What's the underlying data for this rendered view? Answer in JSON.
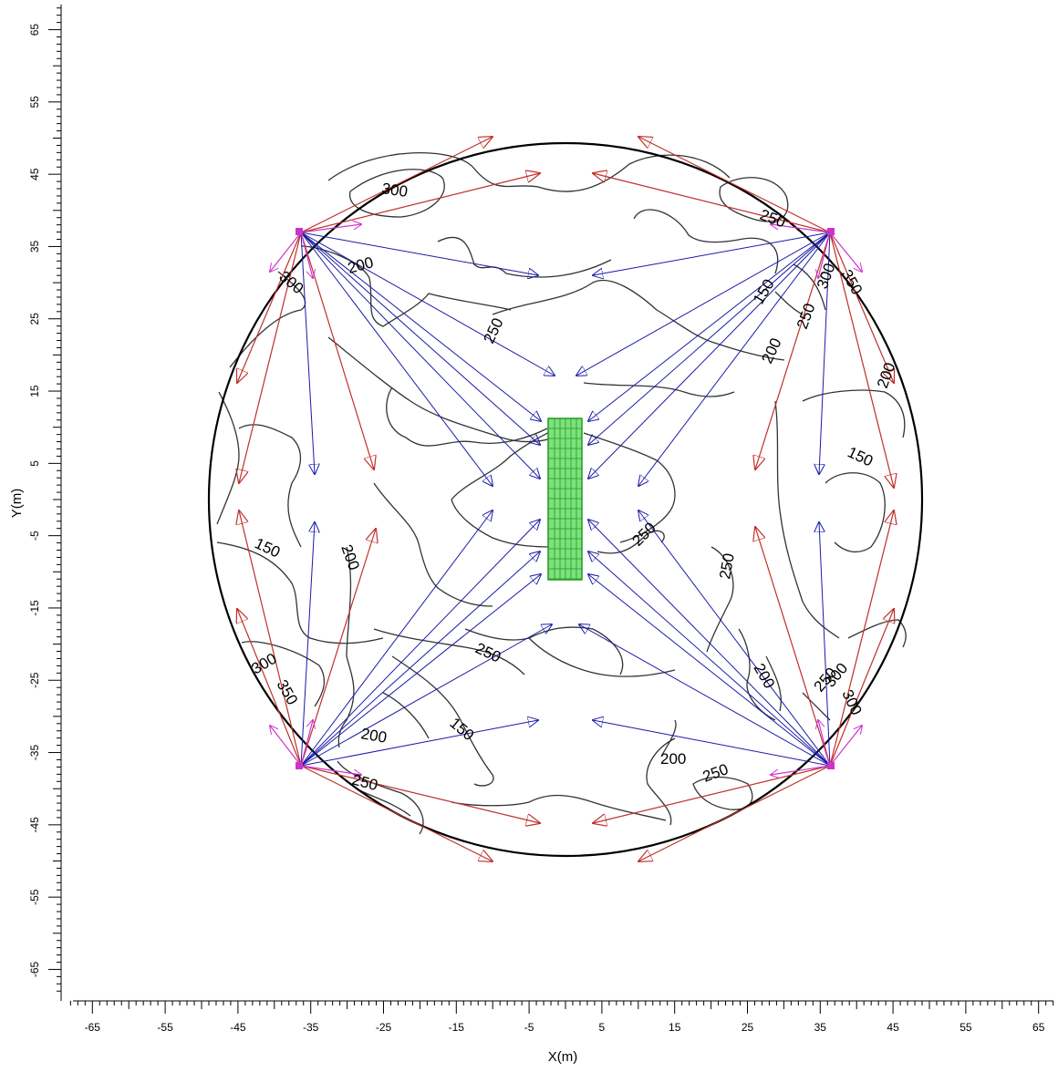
{
  "x_axis": {
    "title": "X(m)",
    "ticks": [
      "-65",
      "-55",
      "-45",
      "-35",
      "-25",
      "-15",
      "-5",
      "5",
      "15",
      "25",
      "35",
      "45",
      "55",
      "65"
    ]
  },
  "y_axis": {
    "title": "Y(m)",
    "ticks": [
      "65",
      "55",
      "45",
      "35",
      "25",
      "15",
      "5",
      "-5",
      "-15",
      "-25",
      "-35",
      "-45",
      "-55",
      "-65"
    ]
  },
  "contour_labels": [
    "300",
    "300",
    "200",
    "250",
    "250",
    "150",
    "300",
    "250",
    "350",
    "200",
    "150",
    "200",
    "200",
    "150",
    "200",
    "250",
    "250",
    "250",
    "300",
    "350",
    "150",
    "250",
    "300",
    "200",
    "250",
    "300",
    "200",
    "250"
  ],
  "colors": {
    "boundary": "#000000",
    "contour": "#333333",
    "blue_arrows": "#1a1aa8",
    "red_arrows": "#c0302a",
    "magenta_markers": "#cc33cc",
    "green_grid": "#1f9d1f",
    "green_fill": "#7ee07e"
  }
}
